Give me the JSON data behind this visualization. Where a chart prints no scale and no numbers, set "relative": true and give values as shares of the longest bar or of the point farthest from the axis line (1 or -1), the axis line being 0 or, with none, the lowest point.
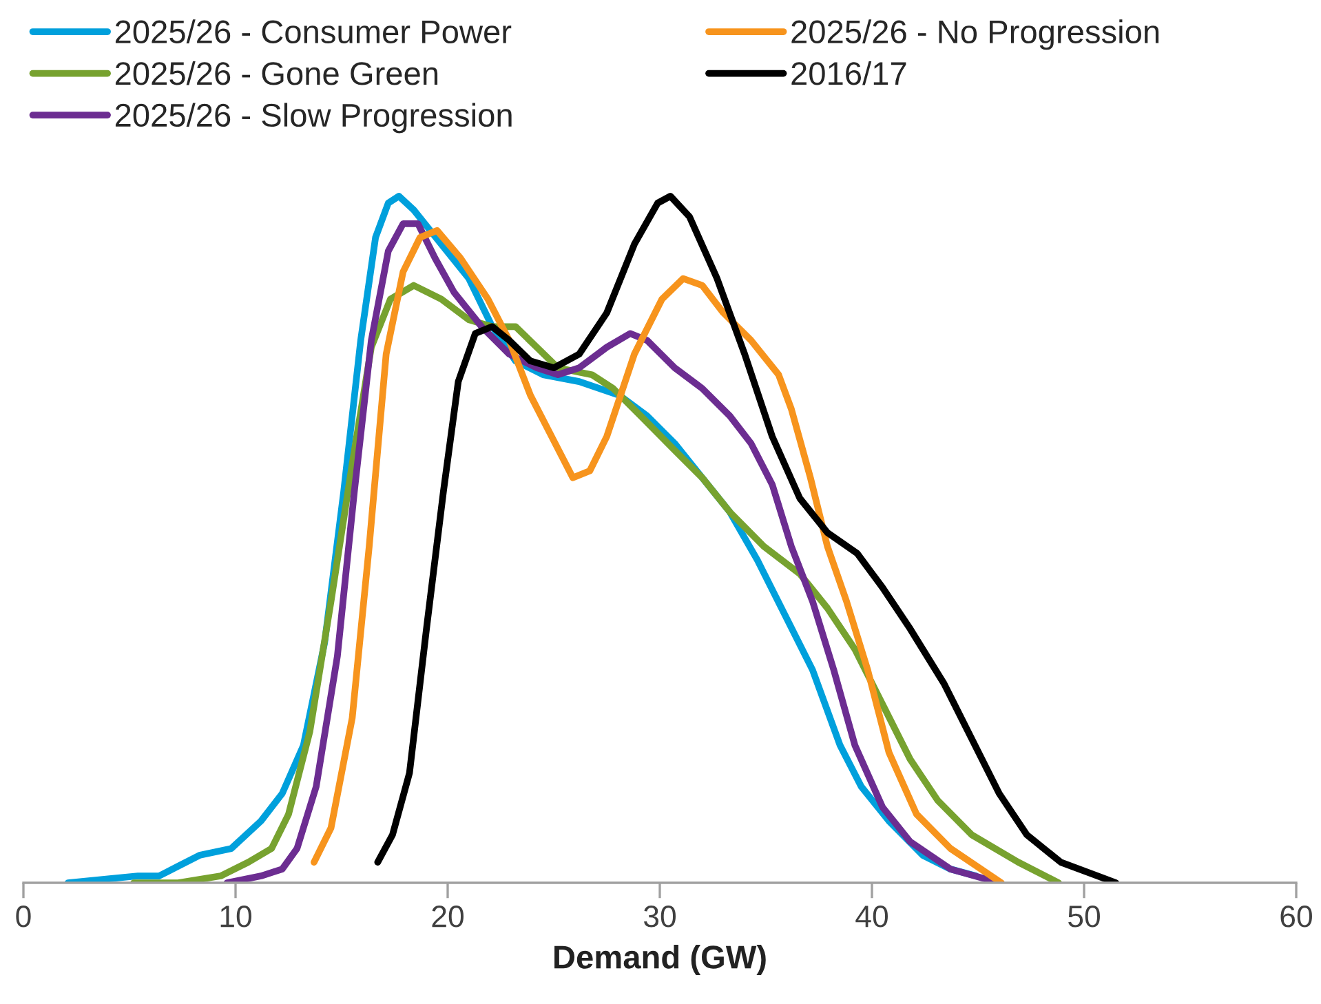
{
  "chart_data": {
    "type": "line",
    "relative": true,
    "xlabel": "Demand (GW)",
    "xlim": [
      0,
      60
    ],
    "xticks": [
      0,
      10,
      20,
      30,
      40,
      50,
      60
    ],
    "legend": "top",
    "grid": false,
    "line_style": "solid",
    "series": [
      {
        "name": "2025/26 - Consumer Power",
        "color": "#00a0dc",
        "x": [
          2.1,
          5.4,
          6.4,
          8.3,
          9.8,
          11.2,
          12.2,
          13.2,
          14.2,
          15.1,
          15.9,
          16.6,
          17.2,
          17.7,
          18.4,
          19.7,
          21.0,
          22.1,
          23.2,
          24.5,
          26.2,
          28.1,
          29.4,
          30.7,
          32.0,
          33.3,
          34.6,
          35.9,
          37.2,
          38.5,
          39.5,
          40.8,
          42.4,
          43.7,
          44.9
        ],
        "values": [
          0,
          0.01,
          0.01,
          0.04,
          0.05,
          0.09,
          0.13,
          0.2,
          0.35,
          0.57,
          0.79,
          0.94,
          0.99,
          1.0,
          0.98,
          0.93,
          0.88,
          0.81,
          0.76,
          0.74,
          0.73,
          0.71,
          0.68,
          0.64,
          0.59,
          0.54,
          0.47,
          0.39,
          0.31,
          0.2,
          0.14,
          0.09,
          0.04,
          0.02,
          0.01
        ]
      },
      {
        "name": "2025/26 - Gone Green",
        "color": "#77a22f",
        "x": [
          5.2,
          7.3,
          9.3,
          10.6,
          11.7,
          12.5,
          13.5,
          14.5,
          15.5,
          16.4,
          17.3,
          18.4,
          19.7,
          21.0,
          22.1,
          23.2,
          24.2,
          25.2,
          26.8,
          27.8,
          29.1,
          30.7,
          32.0,
          33.3,
          34.9,
          36.6,
          37.9,
          39.2,
          40.5,
          41.8,
          43.1,
          44.7,
          46.9,
          48.8
        ],
        "values": [
          0,
          0.0,
          0.01,
          0.03,
          0.05,
          0.1,
          0.22,
          0.41,
          0.61,
          0.78,
          0.85,
          0.87,
          0.85,
          0.82,
          0.81,
          0.81,
          0.78,
          0.75,
          0.74,
          0.72,
          0.68,
          0.63,
          0.59,
          0.54,
          0.49,
          0.45,
          0.4,
          0.34,
          0.26,
          0.18,
          0.12,
          0.07,
          0.03,
          0.0
        ]
      },
      {
        "name": "2025/26 - Slow Progression",
        "color": "#6c2d91",
        "x": [
          9.6,
          11.2,
          12.2,
          12.9,
          13.8,
          14.8,
          15.6,
          16.4,
          17.2,
          17.9,
          18.6,
          19.4,
          20.3,
          21.6,
          22.9,
          24.2,
          25.2,
          26.2,
          27.5,
          28.6,
          29.4,
          30.7,
          32.0,
          33.3,
          34.3,
          35.3,
          36.2,
          37.2,
          38.2,
          39.2,
          40.5,
          41.8,
          43.7,
          46.0
        ],
        "values": [
          0,
          0.01,
          0.02,
          0.05,
          0.14,
          0.33,
          0.57,
          0.79,
          0.92,
          0.96,
          0.96,
          0.91,
          0.86,
          0.81,
          0.77,
          0.75,
          0.74,
          0.75,
          0.78,
          0.8,
          0.79,
          0.75,
          0.72,
          0.68,
          0.64,
          0.58,
          0.49,
          0.41,
          0.31,
          0.2,
          0.11,
          0.06,
          0.02,
          0
        ]
      },
      {
        "name": "2025/26 - No Progression",
        "color": "#f7941d",
        "x": [
          13.7,
          14.5,
          15.5,
          16.3,
          17.1,
          17.9,
          18.7,
          19.5,
          20.6,
          21.9,
          22.9,
          23.9,
          24.9,
          25.9,
          26.7,
          27.5,
          28.8,
          30.1,
          31.1,
          32.0,
          33.0,
          34.3,
          35.6,
          36.2,
          37.1,
          37.9,
          38.8,
          39.8,
          40.8,
          42.1,
          43.7,
          46.1
        ],
        "values": [
          0.03,
          0.08,
          0.24,
          0.49,
          0.77,
          0.89,
          0.94,
          0.95,
          0.91,
          0.85,
          0.79,
          0.71,
          0.65,
          0.59,
          0.6,
          0.65,
          0.77,
          0.85,
          0.88,
          0.87,
          0.83,
          0.79,
          0.74,
          0.69,
          0.59,
          0.49,
          0.41,
          0.31,
          0.19,
          0.1,
          0.05,
          0.0
        ]
      },
      {
        "name": "2016/17",
        "color": "#000000",
        "x": [
          16.7,
          17.4,
          18.2,
          19.0,
          19.8,
          20.5,
          21.3,
          22.1,
          22.9,
          23.9,
          25.0,
          26.2,
          27.5,
          28.8,
          29.9,
          30.5,
          31.4,
          32.7,
          34.0,
          35.3,
          36.6,
          37.9,
          39.3,
          40.5,
          41.8,
          43.4,
          44.7,
          46.0,
          47.3,
          48.9,
          51.5
        ],
        "values": [
          0.03,
          0.07,
          0.16,
          0.37,
          0.57,
          0.73,
          0.8,
          0.81,
          0.79,
          0.76,
          0.75,
          0.77,
          0.83,
          0.93,
          0.99,
          1.0,
          0.97,
          0.88,
          0.77,
          0.65,
          0.56,
          0.51,
          0.48,
          0.43,
          0.37,
          0.29,
          0.21,
          0.13,
          0.07,
          0.03,
          0.0
        ]
      }
    ]
  }
}
